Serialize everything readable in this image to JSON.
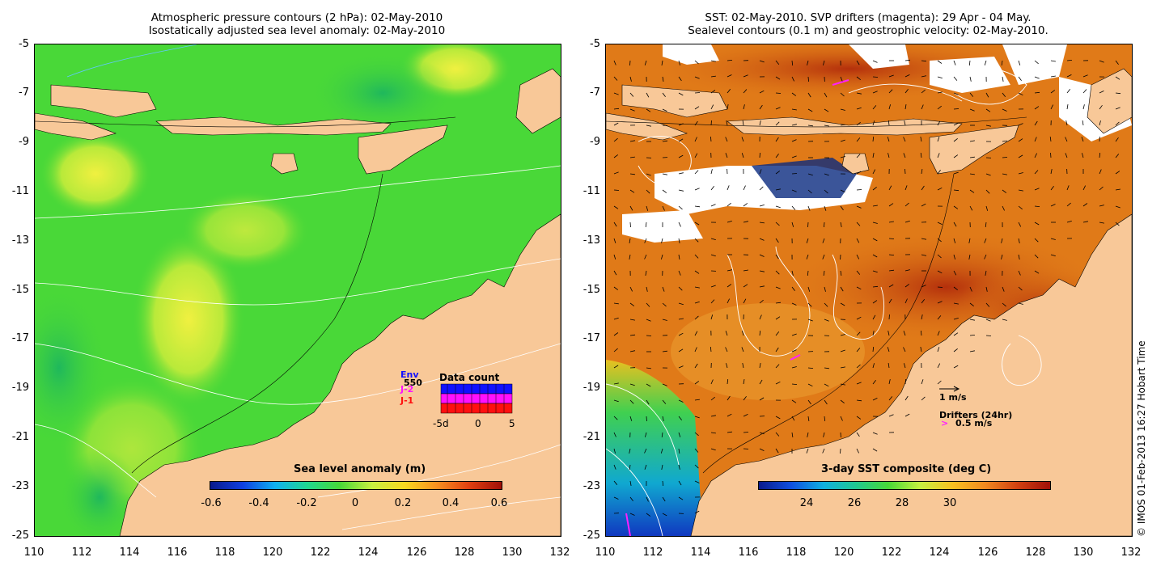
{
  "left": {
    "title_line1": "Atmospheric pressure contours (2 hPa): 02-May-2010",
    "title_line2": "Isostatically adjusted sea level anomaly: 02-May-2010",
    "colorbar_title": "Sea level anomaly (m)",
    "colorbar_ticks": [
      "-0.6",
      "-0.4",
      "-0.2",
      "0",
      "0.2",
      "0.4",
      "0.6"
    ],
    "inset": {
      "title": "Data count",
      "legend": [
        "Env",
        "J-2",
        "J-1"
      ],
      "sub_legend": "550",
      "axis": [
        "-5d",
        "0",
        "5"
      ],
      "colors": {
        "env": "#1010ff",
        "j2": "#ff10ff",
        "j1": "#ff1010"
      }
    }
  },
  "right": {
    "title_line1": "SST: 02-May-2010. SVP drifters (magenta): 29 Apr - 04 May.",
    "title_line2": "Sealevel contours (0.1 m) and geostrophic velocity: 02-May-2010.",
    "colorbar_title": "3-day SST composite (deg C)",
    "colorbar_ticks": [
      "24",
      "26",
      "28",
      "30"
    ],
    "velocity_label": "1 m/s",
    "drifters_label": "Drifters (24hr)",
    "drifters_scale": "0.5 m/s"
  },
  "axes": {
    "y_ticks": [
      "-5",
      "-7",
      "-9",
      "-11",
      "-13",
      "-15",
      "-17",
      "-19",
      "-21",
      "-23",
      "-25"
    ],
    "x_ticks": [
      "110",
      "112",
      "114",
      "116",
      "118",
      "120",
      "122",
      "124",
      "126",
      "128",
      "130",
      "132"
    ]
  },
  "credit": "© IMOS 01-Feb-2013 16:27 Hobart Time",
  "colors": {
    "land": "#f8c898",
    "sla_green": "#49d838",
    "sla_yellow": "#e6f03c",
    "sst_orange": "#e07a18",
    "sst_red": "#b4300c"
  }
}
